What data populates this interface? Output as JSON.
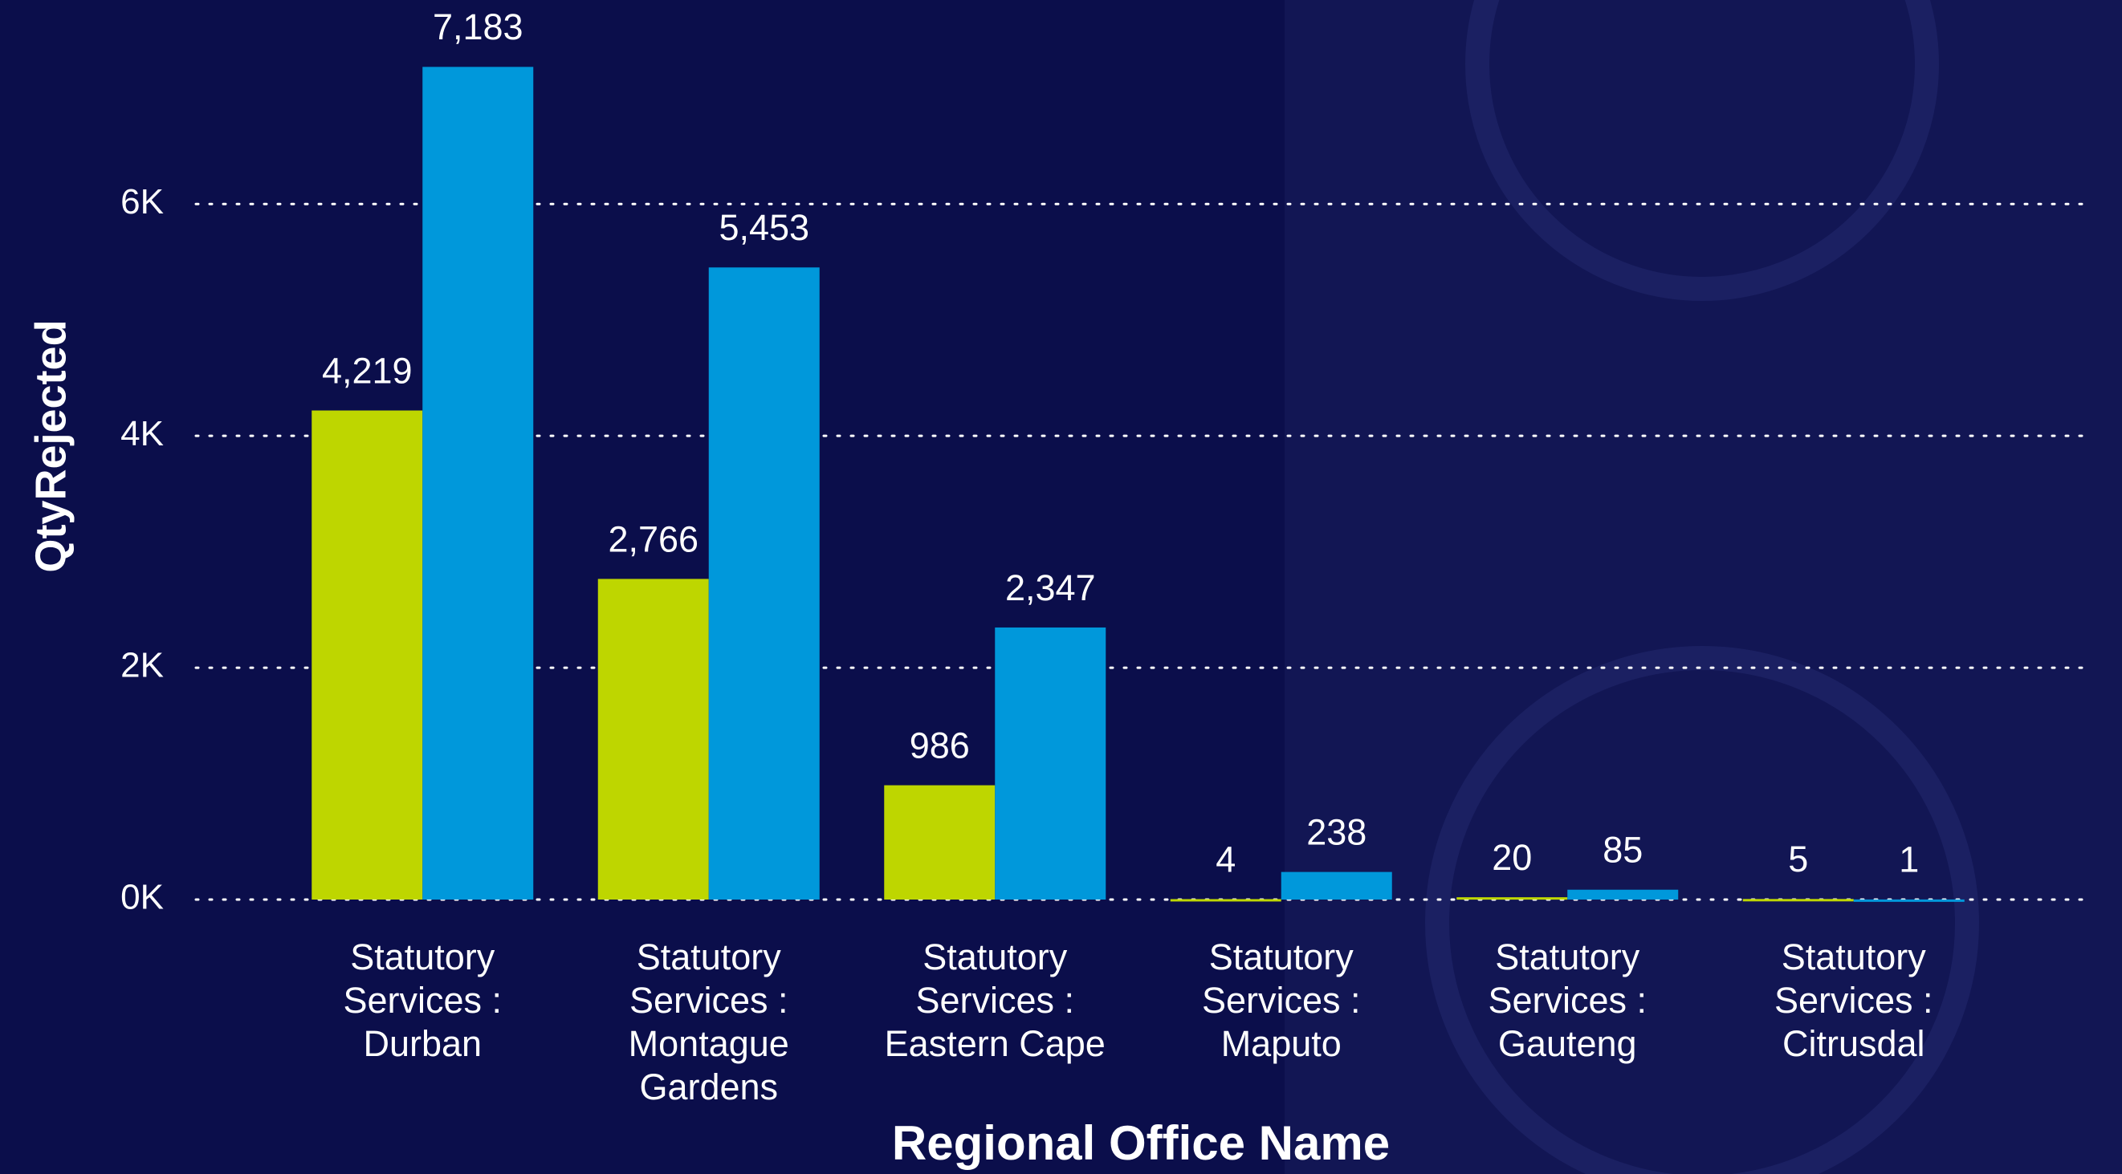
{
  "chart_data": {
    "type": "bar",
    "x_label": "Regional Office Name",
    "y_label": "QtyRejected",
    "categories": [
      "Statutory Services : Durban",
      "Statutory Services : Montague Gardens",
      "Statutory Services : Eastern Cape",
      "Statutory Services : Maputo",
      "Statutory Services : Gauteng",
      "Statutory Services : Citrusdal"
    ],
    "series": [
      {
        "color": "#bed600",
        "values": [
          4219,
          2766,
          986,
          4,
          20,
          5
        ],
        "value_labels": [
          "4,219",
          "2,766",
          "986",
          "4",
          "20",
          "5"
        ]
      },
      {
        "color": "#0098db",
        "values": [
          7183,
          5453,
          2347,
          238,
          85,
          1
        ],
        "value_labels": [
          "7,183",
          "5,453",
          "2,347",
          "238",
          "85",
          "1"
        ]
      }
    ],
    "ylim": [
      0,
      7760
    ],
    "yticks": [
      {
        "value": 0,
        "label": "0K"
      },
      {
        "value": 2000,
        "label": "2K"
      },
      {
        "value": 4000,
        "label": "4K"
      },
      {
        "value": 6000,
        "label": "6K"
      }
    ],
    "grid": true
  }
}
